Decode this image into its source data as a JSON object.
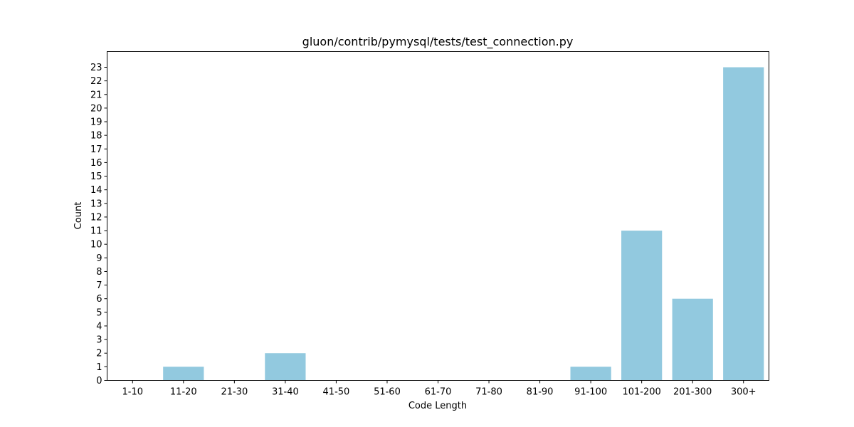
{
  "chart_data": {
    "type": "bar",
    "title": "gluon/contrib/pymysql/tests/test_connection.py",
    "xlabel": "Code Length",
    "ylabel": "Count",
    "categories": [
      "1-10",
      "11-20",
      "21-30",
      "31-40",
      "41-50",
      "51-60",
      "61-70",
      "71-80",
      "81-90",
      "91-100",
      "101-200",
      "201-300",
      "300+"
    ],
    "values": [
      0,
      1,
      0,
      2,
      0,
      0,
      0,
      0,
      0,
      1,
      11,
      6,
      23
    ],
    "ylim": [
      0,
      24.15
    ],
    "yticks": [
      0,
      1,
      2,
      3,
      4,
      5,
      6,
      7,
      8,
      9,
      10,
      11,
      12,
      13,
      14,
      15,
      16,
      17,
      18,
      19,
      20,
      21,
      22,
      23
    ],
    "bar_color": "#92c9df",
    "grid": false,
    "legend": false
  }
}
